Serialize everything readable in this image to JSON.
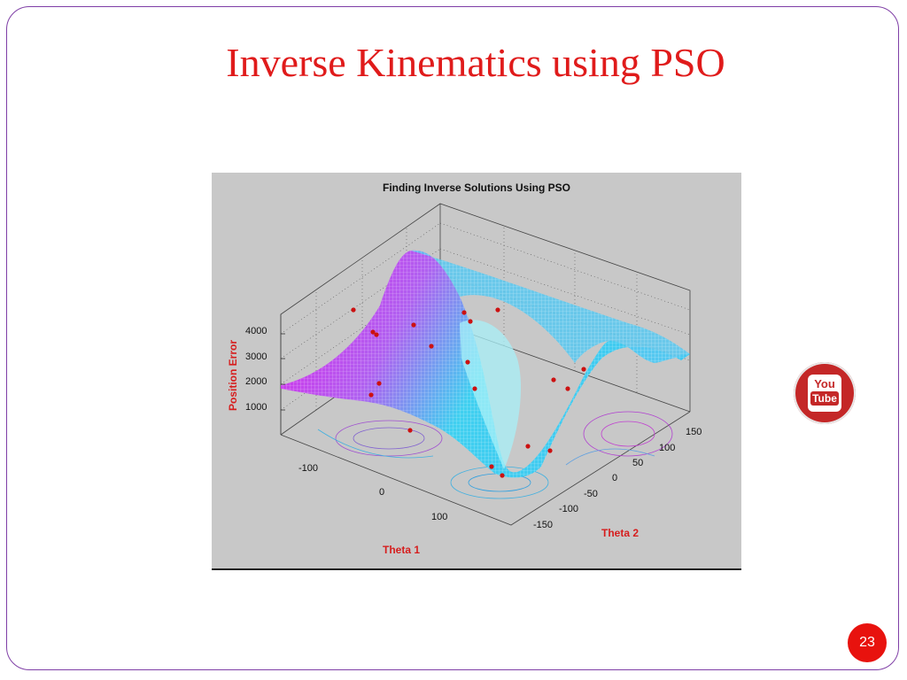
{
  "slide": {
    "title": "Inverse Kinematics using PSO",
    "page_number": "23",
    "video_icon": {
      "name": "youtube-icon",
      "line1": "You",
      "line2": "Tube"
    }
  },
  "figure": {
    "title": "Finding Inverse Solutions Using PSO",
    "zlabel": "Position Error",
    "xlabel": "Theta 1",
    "ylabel": "Theta 2",
    "z_ticks": [
      "4000",
      "3000",
      "2000",
      "1000"
    ],
    "x_ticks": [
      "-100",
      "0",
      "100"
    ],
    "y_ticks": [
      "150",
      "100",
      "50",
      "0",
      "-50",
      "-100",
      "-150"
    ],
    "colors": {
      "surface_high": "#e020e8",
      "surface_low": "#20e8e8",
      "particles": "#cc1111",
      "title": "#e01b1b"
    }
  },
  "chart_data": {
    "type": "surface",
    "title": "Finding Inverse Solutions Using PSO",
    "xlabel": "Theta 1",
    "ylabel": "Theta 2",
    "zlabel": "Position Error",
    "xlim": [
      -180,
      180
    ],
    "ylim": [
      -180,
      180
    ],
    "zlim": [
      0,
      4500
    ],
    "x_ticks": [
      -100,
      0,
      100
    ],
    "y_ticks": [
      -150,
      -100,
      -50,
      0,
      50,
      100,
      150
    ],
    "z_ticks": [
      1000,
      2000,
      3000,
      4000
    ],
    "grid": true,
    "series": [
      {
        "name": "error surface",
        "style": "mesh",
        "colormap": "cool (cyan to magenta)"
      },
      {
        "name": "particles",
        "style": "red asterisk markers"
      }
    ]
  }
}
